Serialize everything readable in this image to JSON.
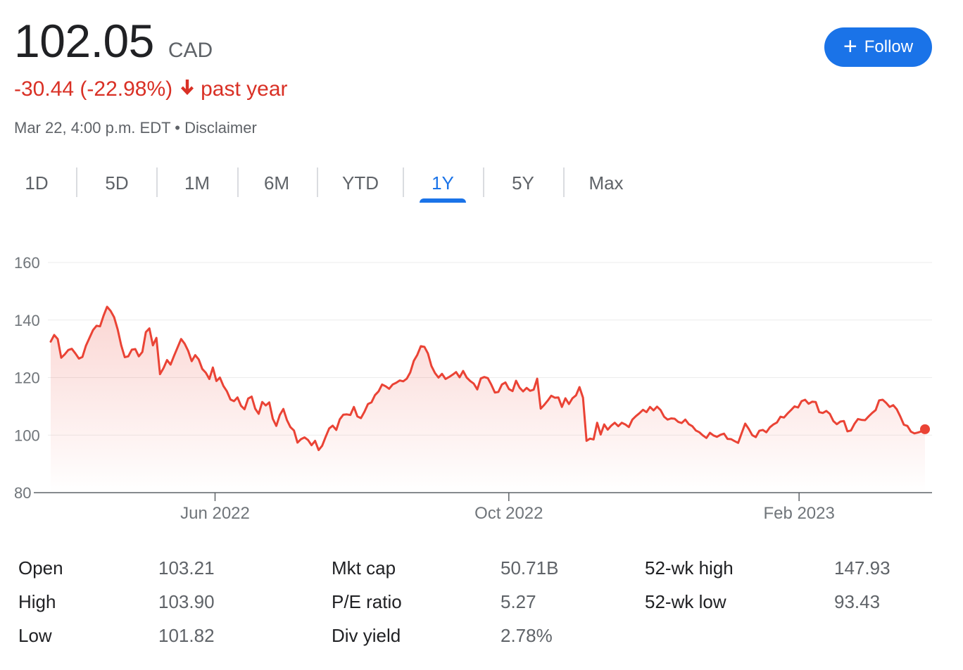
{
  "quote": {
    "price": "102.05",
    "currency": "CAD",
    "change": "-30.44 (-22.98%)",
    "period": "past year",
    "timestamp": "Mar 22, 4:00 p.m. EDT",
    "separator": "•",
    "disclaimer": "Disclaimer",
    "follow_label": "Follow"
  },
  "tabs": [
    {
      "label": "1D"
    },
    {
      "label": "5D"
    },
    {
      "label": "1M"
    },
    {
      "label": "6M"
    },
    {
      "label": "YTD"
    },
    {
      "label": "1Y",
      "active": true
    },
    {
      "label": "5Y"
    },
    {
      "label": "Max"
    }
  ],
  "colors": {
    "line": "#ea4335",
    "accent": "#1a73e8",
    "negative": "#d93025"
  },
  "chart_data": {
    "type": "area",
    "y_ticks": [
      "160",
      "140",
      "120",
      "100",
      "80"
    ],
    "ylim": [
      80,
      160
    ],
    "x_ticks": [
      "Jun 2022",
      "Oct 2022",
      "Feb 2023"
    ],
    "x_tick_fractions": [
      0.188,
      0.524,
      0.856
    ],
    "grid": true,
    "values": [
      132.5,
      134.8,
      133.4,
      126.9,
      128.1,
      129.6,
      130.0,
      128.4,
      126.6,
      127.2,
      131.1,
      133.8,
      136.5,
      138.0,
      137.8,
      141.5,
      144.6,
      143.2,
      141.0,
      136.7,
      131.2,
      127.1,
      127.4,
      129.7,
      129.9,
      127.4,
      128.9,
      135.8,
      137.1,
      131.2,
      133.8,
      121.2,
      123.3,
      126.1,
      124.5,
      127.6,
      130.5,
      133.4,
      131.8,
      129.3,
      125.7,
      127.8,
      126.3,
      123.0,
      121.7,
      119.5,
      123.5,
      118.8,
      120.0,
      117.1,
      115.2,
      112.4,
      111.8,
      113.1,
      110.2,
      109.0,
      112.7,
      113.4,
      109.2,
      107.4,
      111.5,
      110.3,
      111.4,
      105.7,
      103.2,
      107.0,
      109.1,
      105.3,
      102.8,
      101.6,
      97.4,
      98.6,
      99.2,
      98.3,
      96.5,
      98.0,
      94.8,
      96.3,
      99.4,
      102.3,
      103.3,
      101.8,
      105.5,
      107.1,
      107.2,
      107.0,
      109.8,
      106.5,
      105.9,
      108.1,
      110.8,
      111.4,
      113.9,
      115.2,
      117.6,
      117.0,
      116.1,
      117.6,
      118.2,
      119.0,
      118.7,
      119.6,
      121.8,
      125.8,
      127.9,
      130.9,
      130.7,
      128.4,
      124.0,
      121.6,
      120.0,
      121.3,
      119.5,
      120.2,
      121.0,
      121.9,
      120.1,
      122.3,
      120.0,
      118.8,
      117.9,
      115.9,
      119.7,
      120.2,
      119.8,
      117.5,
      114.8,
      115.0,
      117.6,
      118.3,
      116.0,
      115.3,
      118.9,
      116.5,
      115.2,
      116.4,
      115.4,
      115.8,
      119.6,
      109.2,
      110.5,
      112.0,
      113.7,
      113.0,
      113.1,
      109.8,
      112.8,
      110.8,
      112.8,
      113.8,
      116.7,
      113.0,
      98.0,
      98.8,
      98.5,
      104.3,
      100.2,
      103.7,
      101.9,
      103.3,
      104.3,
      103.1,
      104.3,
      103.7,
      102.8,
      105.4,
      106.6,
      107.6,
      108.8,
      108.0,
      109.8,
      108.6,
      109.9,
      108.7,
      106.4,
      105.4,
      105.8,
      105.7,
      104.6,
      104.2,
      105.4,
      103.8,
      103.1,
      101.6,
      101.0,
      99.9,
      99.0,
      100.8,
      99.9,
      99.4,
      100.1,
      100.5,
      98.7,
      98.6,
      97.9,
      97.3,
      100.7,
      104.0,
      102.2,
      100.0,
      99.3,
      101.5,
      101.8,
      101.0,
      102.7,
      103.7,
      104.4,
      106.4,
      106.1,
      107.5,
      108.7,
      110.0,
      109.6,
      111.8,
      112.3,
      110.9,
      111.6,
      111.5,
      108.0,
      107.7,
      108.4,
      107.4,
      104.9,
      103.8,
      104.7,
      104.9,
      101.3,
      101.6,
      103.9,
      105.6,
      105.3,
      105.2,
      106.5,
      107.7,
      108.7,
      112.1,
      112.3,
      111.2,
      109.8,
      110.4,
      109.0,
      106.5,
      103.6,
      103.2,
      101.2,
      100.6,
      100.9,
      101.3,
      102.05
    ]
  },
  "stats": [
    [
      {
        "label": "Open",
        "value": "103.21"
      },
      {
        "label": "High",
        "value": "103.90"
      },
      {
        "label": "Low",
        "value": "101.82"
      }
    ],
    [
      {
        "label": "Mkt cap",
        "value": "50.71B"
      },
      {
        "label": "P/E ratio",
        "value": "5.27"
      },
      {
        "label": "Div yield",
        "value": "2.78%"
      }
    ],
    [
      {
        "label": "52-wk high",
        "value": "147.93"
      },
      {
        "label": "52-wk low",
        "value": "93.43"
      }
    ]
  ]
}
